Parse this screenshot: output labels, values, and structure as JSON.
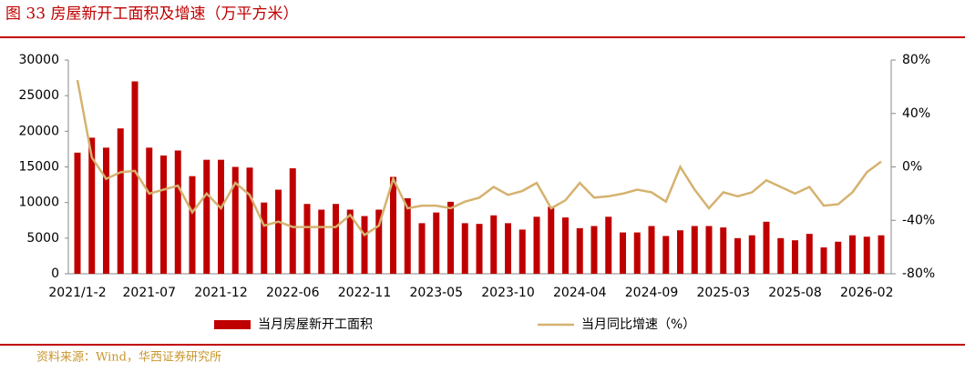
{
  "title": "图 33  房屋新开工面积及增速（万平方米）",
  "source": "资料来源：Wind，华西证券研究所",
  "chart_data": {
    "type": "bar-line",
    "categories": [
      "2021/1-2",
      null,
      null,
      null,
      null,
      "2021-07",
      null,
      null,
      null,
      null,
      "2021-12",
      null,
      null,
      null,
      null,
      "2022-06",
      null,
      null,
      null,
      null,
      "2022-11",
      null,
      null,
      null,
      null,
      "2023-05",
      null,
      null,
      null,
      null,
      "2023-10",
      null,
      null,
      null,
      null,
      "2024-04",
      null,
      null,
      null,
      null,
      "2024-09",
      null,
      null,
      null,
      null,
      "2025-03",
      null,
      null,
      null,
      null,
      "2025-08",
      null,
      null,
      null,
      null,
      "2026-02",
      null
    ],
    "series": [
      {
        "name": "当月房屋新开工面积",
        "type": "bar",
        "color": "#c00000",
        "axis": "y",
        "values": [
          17000,
          19100,
          17700,
          20400,
          27000,
          17700,
          16600,
          17300,
          13700,
          16000,
          16000,
          15000,
          14900,
          10000,
          11800,
          14800,
          9800,
          9000,
          9800,
          9000,
          8100,
          9000,
          13600,
          10600,
          7100,
          8600,
          10100,
          7100,
          7000,
          8200,
          7100,
          6200,
          8000,
          9400,
          7900,
          6400,
          6700,
          8000,
          5800,
          5800,
          6700,
          5300,
          6100,
          6700,
          6700,
          6500,
          5000,
          5400,
          7300,
          5000,
          4700,
          5600,
          3700,
          4500,
          5400,
          5200,
          5400
        ]
      },
      {
        "name": "当月同比增速（%）",
        "type": "line",
        "color": "#d5b26f",
        "axis": "y2",
        "values": [
          65,
          7,
          -9,
          -4,
          -3,
          -20,
          -17,
          -14,
          -34,
          -20,
          -31,
          -12,
          -21,
          -44,
          -41,
          -45,
          -45,
          -45,
          -45,
          -36,
          -51,
          -44,
          -9,
          -31,
          -29,
          -29,
          -31,
          -26,
          -23,
          -15,
          -21,
          -18,
          -12,
          -31,
          -25,
          -12,
          -23,
          -22,
          -20,
          -17,
          -19,
          -26,
          0,
          -17,
          -31,
          -19,
          -22,
          -19,
          -10,
          -15,
          -20,
          -15,
          -29,
          -28,
          -19,
          -4,
          4
        ]
      }
    ],
    "ylim": [
      0,
      30000
    ],
    "yticks": [
      0,
      5000,
      10000,
      15000,
      20000,
      25000,
      30000
    ],
    "y2lim": [
      -80,
      80
    ],
    "y2ticks": [
      {
        "value": -80,
        "label": "-80%"
      },
      {
        "value": -40,
        "label": "-40%"
      },
      {
        "value": 0,
        "label": "0%"
      },
      {
        "value": 40,
        "label": "40%"
      },
      {
        "value": 80,
        "label": "80%"
      }
    ],
    "grid": false,
    "legend": "bottom"
  }
}
